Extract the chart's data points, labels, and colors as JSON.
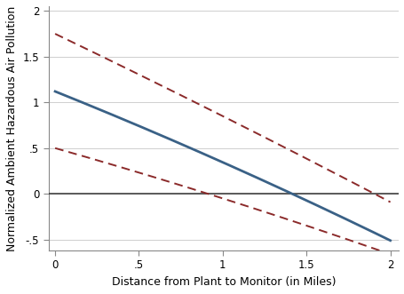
{
  "x_start": 0,
  "x_end": 2,
  "n_points": 300,
  "main_a": 1.12,
  "main_b": -0.735,
  "main_c": -0.04,
  "upper_a": 1.75,
  "upper_b": -0.88,
  "upper_c": -0.02,
  "lower_a": 0.5,
  "lower_b": -0.52,
  "lower_c": -0.03,
  "main_color": "#3a6186",
  "ci_color": "#8b2a2a",
  "ref_line_color": "#333333",
  "bg_color": "#ffffff",
  "grid_color": "#c8c8c8",
  "ylim": [
    -0.62,
    2.05
  ],
  "xlim": [
    -0.04,
    2.05
  ],
  "yticks": [
    -0.5,
    0,
    0.5,
    1,
    1.5,
    2
  ],
  "xticks": [
    0,
    0.5,
    1,
    1.5,
    2
  ],
  "xlabel": "Distance from Plant to Monitor (in Miles)",
  "ylabel": "Normalized Ambient Hazardous Air Pollution",
  "main_lw": 2.0,
  "ci_lw": 1.4,
  "ref_lw": 1.1,
  "tick_fontsize": 8.5,
  "label_fontsize": 9.0
}
